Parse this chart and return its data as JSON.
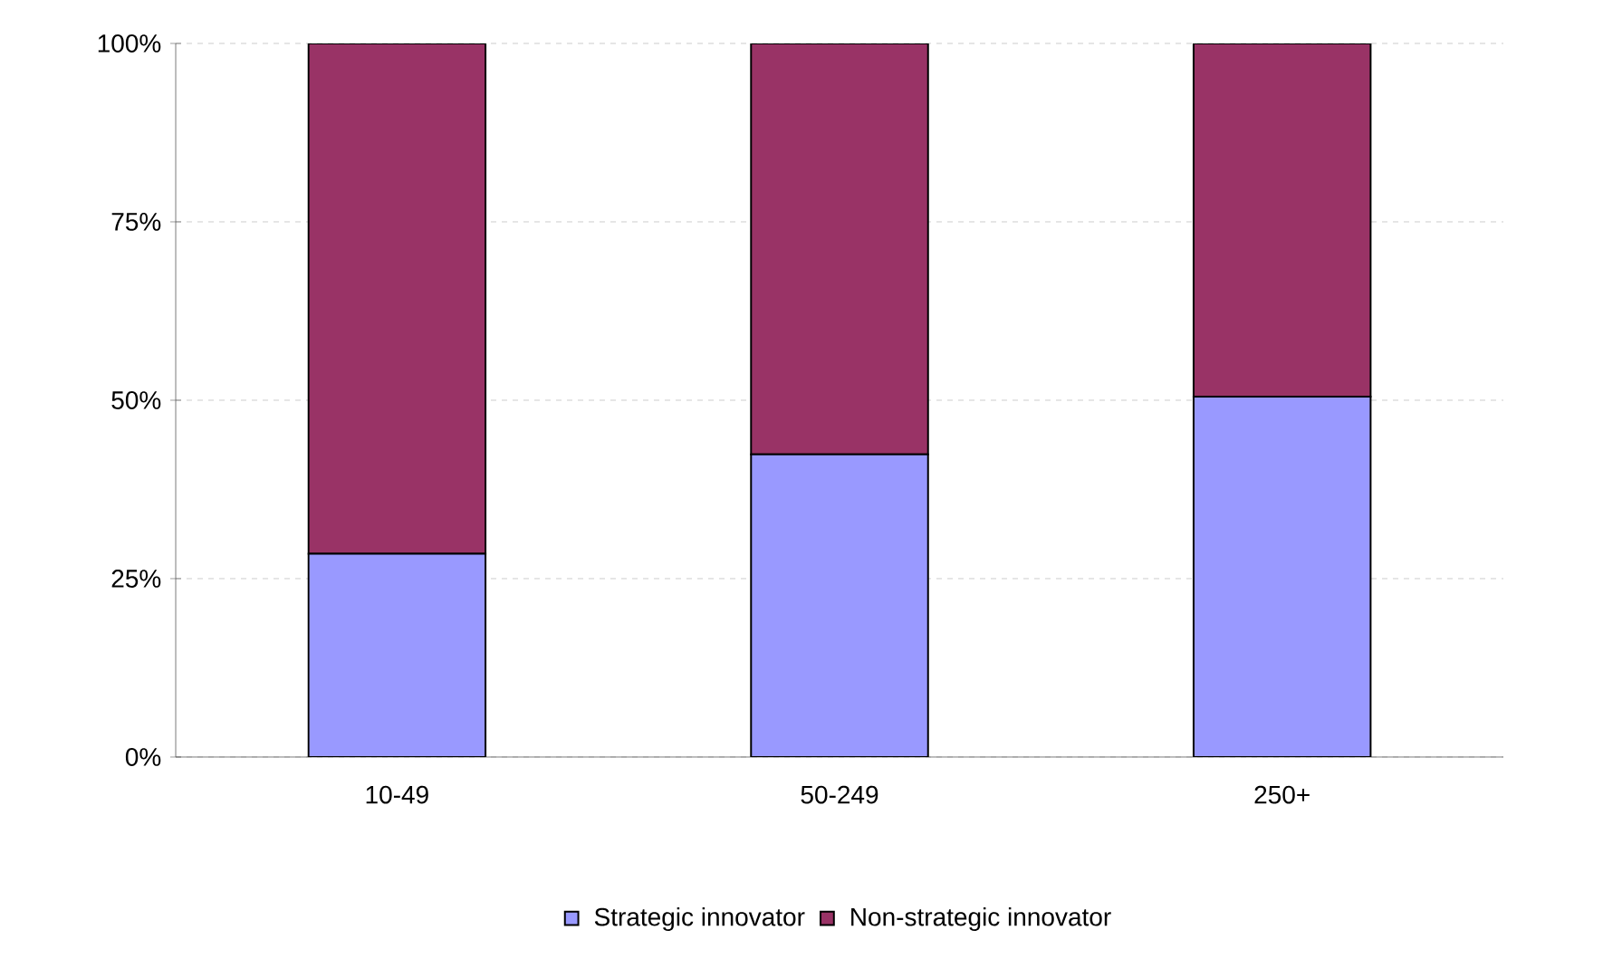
{
  "chart_data": {
    "type": "bar",
    "stacked": true,
    "categories": [
      "10-49",
      "50-249",
      "250+"
    ],
    "series": [
      {
        "name": "Strategic innovator",
        "color": "#9999ff",
        "values": [
          28.5,
          42.4,
          50.5
        ]
      },
      {
        "name": "Non-strategic innovator",
        "color": "#993366",
        "values": [
          71.5,
          57.6,
          49.5
        ]
      }
    ],
    "ylim": [
      0,
      100
    ],
    "yticks": [
      {
        "value": 0,
        "label": "0%"
      },
      {
        "value": 25,
        "label": "25%"
      },
      {
        "value": 50,
        "label": "50%"
      },
      {
        "value": 75,
        "label": "75%"
      },
      {
        "value": 100,
        "label": "100%"
      }
    ],
    "grid": "y",
    "legend": "bottom"
  }
}
